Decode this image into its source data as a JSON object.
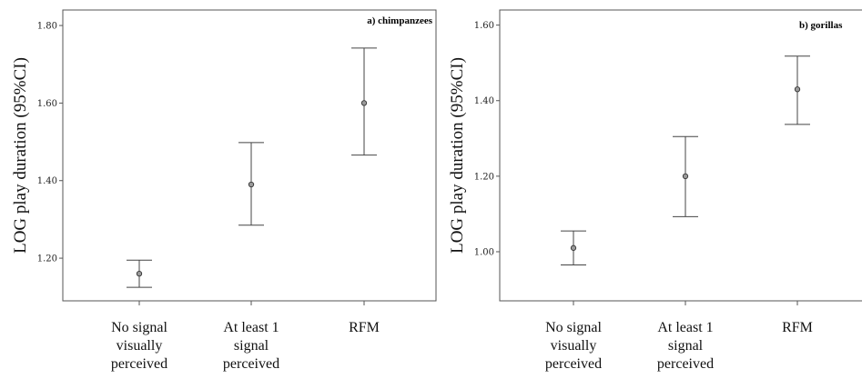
{
  "chart_data": [
    {
      "type": "errorbar",
      "panel_title": "a) chimpanzees",
      "ylabel": "LOG play duration (95%CI)",
      "xlabel": "",
      "ylim": [
        1.09,
        1.84
      ],
      "yticks": [
        1.2,
        1.4,
        1.6,
        1.8
      ],
      "ytick_labels": [
        "1.20",
        "1.40",
        "1.60",
        "1.80"
      ],
      "grid": false,
      "categories": [
        [
          "No signal",
          "visually",
          "perceived"
        ],
        [
          "At least 1",
          "signal",
          "perceived"
        ],
        [
          "RFM"
        ]
      ],
      "points": [
        {
          "mean": 1.16,
          "lower": 1.125,
          "upper": 1.195
        },
        {
          "mean": 1.39,
          "lower": 1.285,
          "upper": 1.498
        },
        {
          "mean": 1.6,
          "lower": 1.466,
          "upper": 1.742
        }
      ]
    },
    {
      "type": "errorbar",
      "panel_title": "b) gorillas",
      "ylabel": "LOG play duration (95%CI)",
      "xlabel": "",
      "ylim": [
        0.87,
        1.64
      ],
      "yticks": [
        1.0,
        1.2,
        1.4,
        1.6
      ],
      "ytick_labels": [
        "1.00",
        "1.20",
        "1.40",
        "1.60"
      ],
      "grid": false,
      "categories": [
        [
          "No signal",
          "visually",
          "perceived"
        ],
        [
          "At least 1",
          "signal",
          "perceived"
        ],
        [
          "RFM"
        ]
      ],
      "points": [
        {
          "mean": 1.01,
          "lower": 0.965,
          "upper": 1.055
        },
        {
          "mean": 1.2,
          "lower": 1.093,
          "upper": 1.305
        },
        {
          "mean": 1.43,
          "lower": 1.337,
          "upper": 1.518
        }
      ]
    }
  ],
  "colors": {
    "axis": "#555555",
    "errorbar": "#444444",
    "marker_fill": "#9a9a9a",
    "marker_stroke": "#333333"
  }
}
